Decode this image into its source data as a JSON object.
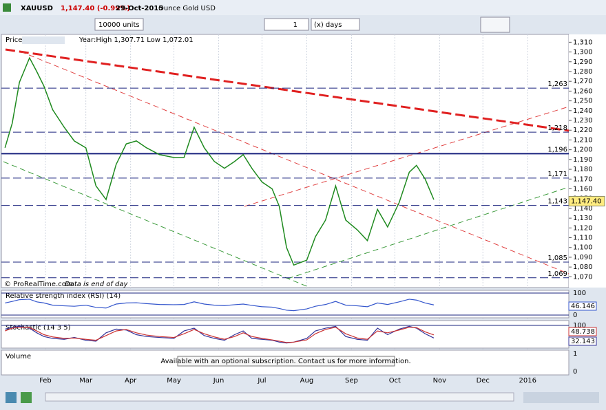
{
  "header": {
    "symbol": "XAUUSD",
    "quote": "1,147.40 (-0.99%)",
    "date": "29-Oct-2015",
    "description": "Ounce Gold USD"
  },
  "toolbar": {
    "quantity": "10000 units",
    "period_value": "1",
    "period_unit": "(x) days"
  },
  "price_panel": {
    "title": "Price",
    "info": "Year:High 1,307.71 Low 1,072.01",
    "copyright": "© ProRealTime.com",
    "note": "Data is end of day",
    "chart": {
      "type": "line",
      "color": "#1f8a1f",
      "x": [
        4,
        9,
        14,
        21,
        26,
        31,
        37,
        45,
        52,
        60,
        67,
        74,
        81,
        88,
        95,
        102,
        111,
        121,
        128,
        135,
        142,
        149,
        156,
        163,
        169,
        175,
        182,
        189,
        194,
        199,
        204,
        213,
        219,
        226,
        233,
        240,
        248,
        255,
        262,
        269,
        277,
        284,
        289,
        295,
        301
      ],
      "values": [
        1202,
        1227,
        1269,
        1294,
        1280,
        1265,
        1241,
        1223,
        1209,
        1202,
        1163,
        1149,
        1185,
        1206,
        1209,
        1202,
        1195,
        1192,
        1192,
        1223,
        1202,
        1188,
        1181,
        1188,
        1195,
        1181,
        1167,
        1160,
        1142,
        1100,
        1082,
        1087,
        1111,
        1128,
        1163,
        1128,
        1118,
        1107,
        1139,
        1121,
        1146,
        1177,
        1184,
        1170,
        1149
      ],
      "xlim": [
        1.5,
        394.5
      ],
      "ylim": [
        1059,
        1318
      ],
      "grid": true,
      "xticks": [
        {
          "value": 32,
          "label": "Feb"
        },
        {
          "value": 60,
          "label": "Mar"
        },
        {
          "value": 91,
          "label": "Apr"
        },
        {
          "value": 121,
          "label": "May"
        },
        {
          "value": 152,
          "label": "Jun"
        },
        {
          "value": 182,
          "label": "Jul"
        },
        {
          "value": 213,
          "label": "Aug"
        },
        {
          "value": 244,
          "label": "Sep"
        },
        {
          "value": 274,
          "label": "Oct"
        },
        {
          "value": 305,
          "label": "Nov"
        },
        {
          "value": 335,
          "label": "Dec"
        },
        {
          "value": 366,
          "label": "2016"
        }
      ],
      "yticks": [
        {
          "value": 1070,
          "label": "1,070"
        },
        {
          "value": 1080,
          "label": "1,080"
        },
        {
          "value": 1090,
          "label": "1,090"
        },
        {
          "value": 1100,
          "label": "1,100"
        },
        {
          "value": 1110,
          "label": "1,110"
        },
        {
          "value": 1120,
          "label": "1,120"
        },
        {
          "value": 1130,
          "label": "1,130"
        },
        {
          "value": 1140,
          "label": "1,140"
        },
        {
          "value": 1150,
          "label": "1,150"
        },
        {
          "value": 1160,
          "label": "1,160"
        },
        {
          "value": 1170,
          "label": "1,170"
        },
        {
          "value": 1180,
          "label": "1,180"
        },
        {
          "value": 1190,
          "label": "1,190"
        },
        {
          "value": 1200,
          "label": "1,200"
        },
        {
          "value": 1210,
          "label": "1,210"
        },
        {
          "value": 1220,
          "label": "1,220"
        },
        {
          "value": 1230,
          "label": "1,230"
        },
        {
          "value": 1240,
          "label": "1,240"
        },
        {
          "value": 1250,
          "label": "1,250"
        },
        {
          "value": 1260,
          "label": "1,260"
        },
        {
          "value": 1270,
          "label": "1,270"
        },
        {
          "value": 1280,
          "label": "1,280"
        },
        {
          "value": 1290,
          "label": "1,290"
        },
        {
          "value": 1300,
          "label": "1,300"
        },
        {
          "value": 1310,
          "label": "1,310"
        }
      ],
      "levels": [
        {
          "value": 1263,
          "label": "1,263"
        },
        {
          "value": 1218,
          "label": "1,218"
        },
        {
          "value": 1196,
          "label": "1,196"
        },
        {
          "value": 1171,
          "label": "1,171"
        },
        {
          "value": 1143,
          "label": "1,143"
        },
        {
          "value": 1085,
          "label": "1,085"
        },
        {
          "value": 1069,
          "label": "1,069"
        }
      ],
      "last": {
        "value": 1147.4,
        "label": "1,147.40"
      }
    }
  },
  "rsi_panel": {
    "title": "Relative strength index (RSI) (14)",
    "type": "line",
    "color": "#3355cc",
    "ylim": [
      0,
      100
    ],
    "yticks": [
      0,
      100
    ],
    "values": [
      55,
      62,
      70,
      72,
      60,
      55,
      45,
      42,
      40,
      45,
      35,
      32,
      50,
      55,
      56,
      52,
      48,
      47,
      48,
      60,
      50,
      45,
      43,
      47,
      50,
      44,
      38,
      36,
      30,
      22,
      20,
      28,
      40,
      48,
      62,
      45,
      42,
      38,
      55,
      48,
      60,
      72,
      68,
      55,
      46.146
    ]
  },
  "stochastic_panel": {
    "title": "Stochastic (14 3 5)",
    "type": "line",
    "ylim": [
      0,
      100
    ],
    "yticks": [
      100
    ],
    "series": [
      {
        "color": "#333399",
        "values": [
          80,
          90,
          95,
          85,
          60,
          40,
          30,
          25,
          35,
          20,
          15,
          60,
          80,
          75,
          50,
          40,
          35,
          30,
          70,
          85,
          45,
          30,
          20,
          50,
          70,
          30,
          25,
          20,
          10,
          5,
          10,
          30,
          70,
          85,
          95,
          40,
          25,
          20,
          85,
          50,
          80,
          95,
          85,
          55,
          32.143
        ]
      },
      {
        "color": "#cc3333",
        "values": [
          70,
          85,
          90,
          88,
          70,
          50,
          38,
          30,
          32,
          25,
          20,
          45,
          70,
          78,
          60,
          48,
          40,
          35,
          55,
          78,
          55,
          38,
          25,
          40,
          60,
          40,
          30,
          22,
          15,
          8,
          10,
          22,
          55,
          78,
          90,
          55,
          32,
          25,
          70,
          60,
          75,
          90,
          88,
          65,
          48.738
        ]
      }
    ]
  },
  "volume_panel": {
    "title": "Volume",
    "yticks": [
      0,
      1
    ],
    "message": "Available with an optional subscription. Contact us for more information."
  }
}
